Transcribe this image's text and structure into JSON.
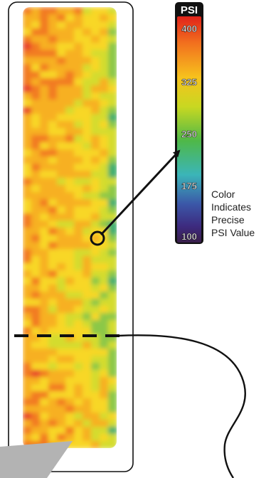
{
  "colorbar": {
    "title": "PSI",
    "ticks": [
      "400",
      "325",
      "250",
      "175",
      "100"
    ],
    "gradient_colors": [
      "#e0231a",
      "#f2711e",
      "#f7c21d",
      "#c8d821",
      "#4fb848",
      "#3bb5b8",
      "#3b57a8",
      "#3d2a7e",
      "#3a1f4a"
    ]
  },
  "annotation": {
    "lines": [
      "Color",
      "Indicates",
      "Precise",
      "PSI Value"
    ]
  },
  "heatmap": {
    "palette": [
      "#e8412a",
      "#f27a22",
      "#f7b021",
      "#f8d726",
      "#d4dc2f",
      "#8cc846",
      "#3fae6e"
    ]
  },
  "colors": {
    "outline": "#111111",
    "callout_gray": "#b3b3b3"
  }
}
